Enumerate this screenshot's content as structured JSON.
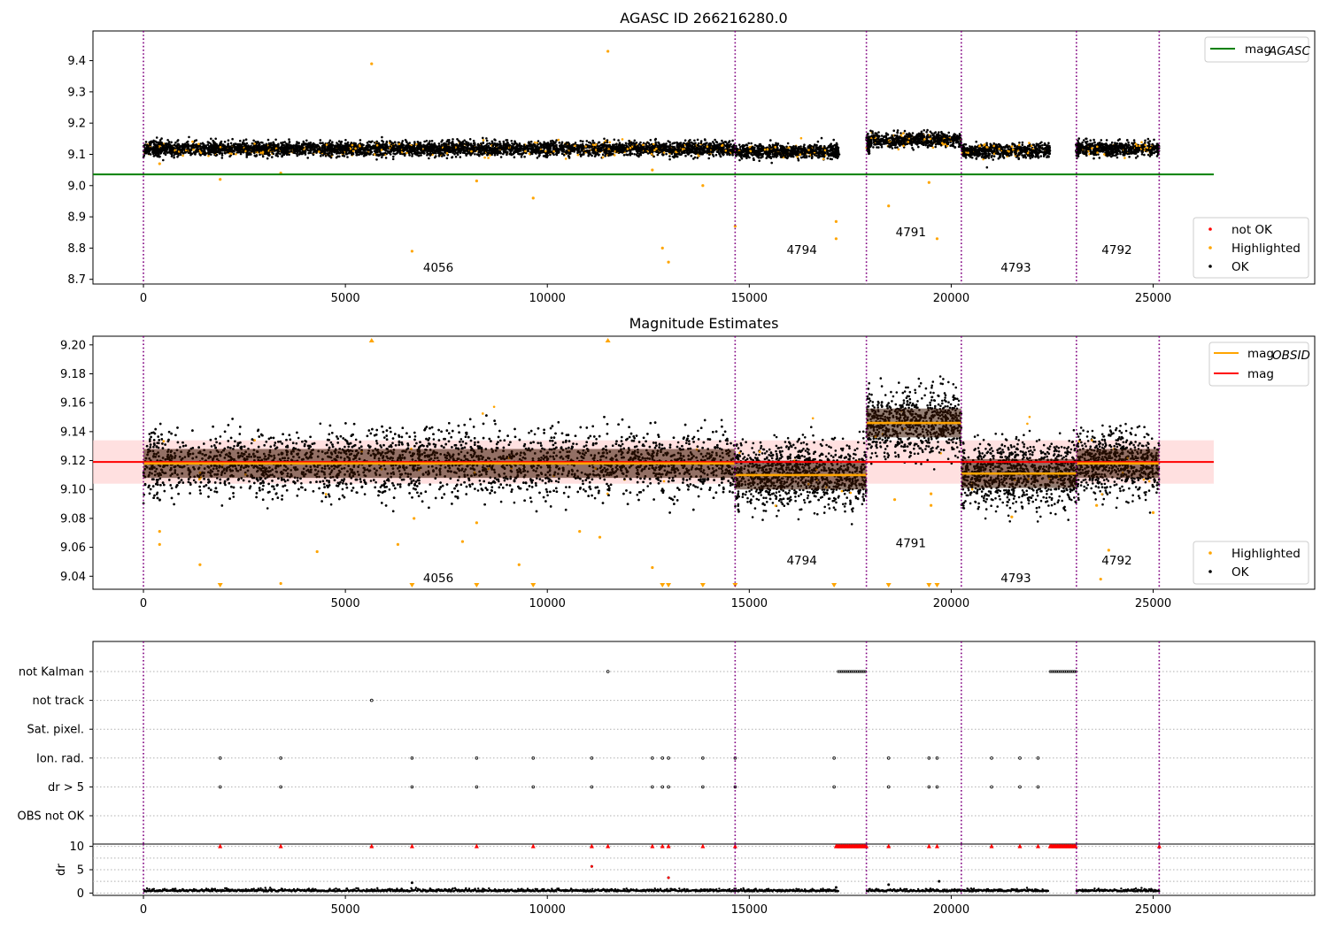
{
  "chart_data": [
    {
      "panel": "top",
      "type": "scatter",
      "title": "AGASC ID 266216280.0",
      "xlim": [
        -1250,
        29000
      ],
      "ylim": [
        8.685,
        9.495
      ],
      "xticks": [
        0,
        5000,
        10000,
        15000,
        20000,
        25000
      ],
      "yticks": [
        8.7,
        8.8,
        8.9,
        9.0,
        9.1,
        9.2,
        9.3,
        9.4
      ],
      "obs_boundaries": [
        0,
        14650,
        17900,
        20250,
        23100,
        25150
      ],
      "segments": [
        {
          "x0": 0,
          "x1": 14650,
          "mean": 9.118,
          "obsid": "4056",
          "label_x": 7300,
          "label_y": 8.725
        },
        {
          "x0": 14650,
          "x1": 17200,
          "mean": 9.11,
          "obsid": "4794",
          "label_x": 16300,
          "label_y": 8.782
        },
        {
          "x0": 17900,
          "x1": 20250,
          "mean": 9.146,
          "obsid": "4791",
          "label_x": 19000,
          "label_y": 8.838
        },
        {
          "x0": 20250,
          "x1": 22400,
          "mean": 9.111,
          "obsid": "4793",
          "label_x": 21600,
          "label_y": 8.725
        },
        {
          "x0": 23100,
          "x1": 25150,
          "mean": 9.118,
          "obsid": "4792",
          "label_x": 24100,
          "label_y": 8.782
        }
      ],
      "gaps": [
        [
          17200,
          17900
        ],
        [
          22400,
          23100
        ]
      ],
      "mag_agasc": 9.036,
      "mag_line_x": [
        -1250,
        26500
      ],
      "highlighted_outliers": [
        {
          "x": 5650,
          "y": 9.39
        },
        {
          "x": 11500,
          "y": 9.43
        },
        {
          "x": 6650,
          "y": 8.79
        },
        {
          "x": 12850,
          "y": 8.8
        },
        {
          "x": 13000,
          "y": 8.755
        },
        {
          "x": 9650,
          "y": 8.96
        },
        {
          "x": 13850,
          "y": 9.0
        },
        {
          "x": 8250,
          "y": 9.015
        },
        {
          "x": 1900,
          "y": 9.02
        },
        {
          "x": 14650,
          "y": 8.87
        },
        {
          "x": 17150,
          "y": 8.885
        },
        {
          "x": 17150,
          "y": 8.83
        },
        {
          "x": 18450,
          "y": 8.935
        },
        {
          "x": 19450,
          "y": 9.01
        },
        {
          "x": 19650,
          "y": 8.83
        },
        {
          "x": 3400,
          "y": 9.04
        },
        {
          "x": 12600,
          "y": 9.05
        },
        {
          "x": 400,
          "y": 9.07
        }
      ],
      "legends": [
        {
          "position": "upper right",
          "entries": [
            {
              "label": "mag",
              "sub": "AGASC",
              "color": "#008000",
              "kind": "line"
            }
          ]
        },
        {
          "position": "lower right",
          "entries": [
            {
              "label": "not OK",
              "color": "#ff0000",
              "kind": "marker"
            },
            {
              "label": "Highlighted",
              "color": "#ffa500",
              "kind": "marker"
            },
            {
              "label": "OK",
              "color": "#000000",
              "kind": "marker"
            }
          ]
        }
      ]
    },
    {
      "panel": "middle",
      "type": "scatter",
      "title": "Magnitude Estimates",
      "xlim": [
        -1250,
        29000
      ],
      "ylim": [
        9.031,
        9.206
      ],
      "xticks": [
        0,
        5000,
        10000,
        15000,
        20000,
        25000
      ],
      "yticks": [
        9.04,
        9.06,
        9.08,
        9.1,
        9.12,
        9.14,
        9.16,
        9.18,
        9.2
      ],
      "mag": 9.119,
      "mag_band": [
        9.104,
        9.134
      ],
      "mag_obsid": [
        {
          "x0": 0,
          "x1": 14650,
          "value": 9.118
        },
        {
          "x0": 14650,
          "x1": 17900,
          "value": 9.11
        },
        {
          "x0": 17900,
          "x1": 20250,
          "value": 9.146
        },
        {
          "x0": 20250,
          "x1": 23100,
          "value": 9.111
        },
        {
          "x0": 23100,
          "x1": 25150,
          "value": 9.118
        }
      ],
      "obsid_labels": [
        {
          "text": "4056",
          "x": 7300,
          "y": 9.036
        },
        {
          "text": "4794",
          "x": 16300,
          "y": 9.048
        },
        {
          "text": "4791",
          "x": 19000,
          "y": 9.06
        },
        {
          "text": "4793",
          "x": 21600,
          "y": 9.036
        },
        {
          "text": "4792",
          "x": 24100,
          "y": 9.048
        }
      ],
      "highlighted_outliers": [
        {
          "x": 400,
          "y": 9.071
        },
        {
          "x": 400,
          "y": 9.062
        },
        {
          "x": 1400,
          "y": 9.048
        },
        {
          "x": 3400,
          "y": 9.035
        },
        {
          "x": 4300,
          "y": 9.057
        },
        {
          "x": 6300,
          "y": 9.062
        },
        {
          "x": 6700,
          "y": 9.08
        },
        {
          "x": 7900,
          "y": 9.064
        },
        {
          "x": 8250,
          "y": 9.077
        },
        {
          "x": 9300,
          "y": 9.048
        },
        {
          "x": 10800,
          "y": 9.071
        },
        {
          "x": 11300,
          "y": 9.067
        },
        {
          "x": 12600,
          "y": 9.046
        },
        {
          "x": 18600,
          "y": 9.093
        },
        {
          "x": 19500,
          "y": 9.097
        },
        {
          "x": 19500,
          "y": 9.089
        },
        {
          "x": 23600,
          "y": 9.089
        },
        {
          "x": 23900,
          "y": 9.058
        },
        {
          "x": 23700,
          "y": 9.038
        },
        {
          "x": 25000,
          "y": 9.084
        },
        {
          "x": 21500,
          "y": 9.081
        }
      ],
      "clipped_low_x": [
        1900,
        6650,
        8250,
        9650,
        12850,
        13000,
        13850,
        14650,
        17100,
        18450,
        19450,
        19650
      ],
      "clipped_high_x": [
        5650,
        11500
      ],
      "legends": [
        {
          "position": "upper right",
          "entries": [
            {
              "label": "mag",
              "sub": "OBSID",
              "color": "#ffa500",
              "kind": "line"
            },
            {
              "label": "mag",
              "sub": "",
              "color": "#ff0000",
              "kind": "line"
            }
          ]
        },
        {
          "position": "lower right",
          "entries": [
            {
              "label": "Highlighted",
              "color": "#ffa500",
              "kind": "marker"
            },
            {
              "label": "OK",
              "color": "#000000",
              "kind": "marker"
            }
          ]
        }
      ]
    },
    {
      "panel": "flags",
      "type": "scatter",
      "xlim": [
        -1250,
        29000
      ],
      "categories": [
        "not Kalman",
        "not track",
        "Sat. pixel.",
        "Ion. rad.",
        "dr > 5",
        "OBS not OK"
      ],
      "flag_points": {
        "not Kalman": [
          11500
        ],
        "not track": [
          5650
        ],
        "Sat. pixel.": [],
        "Ion. rad.": [
          1900,
          3400,
          6650,
          8250,
          9650,
          11100,
          12600,
          12850,
          13000,
          13850,
          14650,
          17100,
          18450,
          19450,
          19650,
          21000,
          21700,
          22150
        ],
        "dr > 5": [
          1900,
          3400,
          6650,
          8250,
          9650,
          11100,
          12600,
          12850,
          13000,
          13850,
          14650,
          17100,
          18450,
          19450,
          19650,
          21000,
          21700,
          22150
        ],
        "OBS not OK": []
      },
      "flag_ranges": {
        "not Kalman": [
          [
            17200,
            17900
          ],
          [
            22450,
            23100
          ]
        ]
      }
    },
    {
      "panel": "dr",
      "type": "scatter",
      "ylabel": "dr",
      "xlim": [
        -1250,
        29000
      ],
      "ylim": [
        -0.5,
        10.5
      ],
      "xticks": [
        0,
        5000,
        10000,
        15000,
        20000,
        25000
      ],
      "yticks": [
        0,
        5,
        10
      ],
      "dr_outliers": [
        {
          "x": 11100,
          "y": 5.7
        },
        {
          "x": 13000,
          "y": 3.3
        },
        {
          "x": 6650,
          "y": 2.2
        },
        {
          "x": 19700,
          "y": 2.5
        },
        {
          "x": 18450,
          "y": 1.8
        },
        {
          "x": 17150,
          "y": 1.2
        }
      ],
      "dr_capped_x": [
        1900,
        3400,
        5650,
        6650,
        8250,
        9650,
        11100,
        11500,
        12600,
        12850,
        13000,
        13850,
        14650,
        18450,
        19450,
        19650,
        21000,
        21700,
        22150,
        25150
      ],
      "dr_capped_ranges": [
        [
          17150,
          17900
        ],
        [
          22450,
          23100
        ]
      ]
    }
  ],
  "colors": {
    "ok": "#000000",
    "highlighted": "#ffa500",
    "not_ok": "#ff0000",
    "mag_agasc": "#008000",
    "mag": "#ff0000",
    "mag_obsid": "#ffa500",
    "mag_band": "#ffcccc",
    "obs_boundary": "#800080",
    "grid": "#b0b0b0"
  }
}
